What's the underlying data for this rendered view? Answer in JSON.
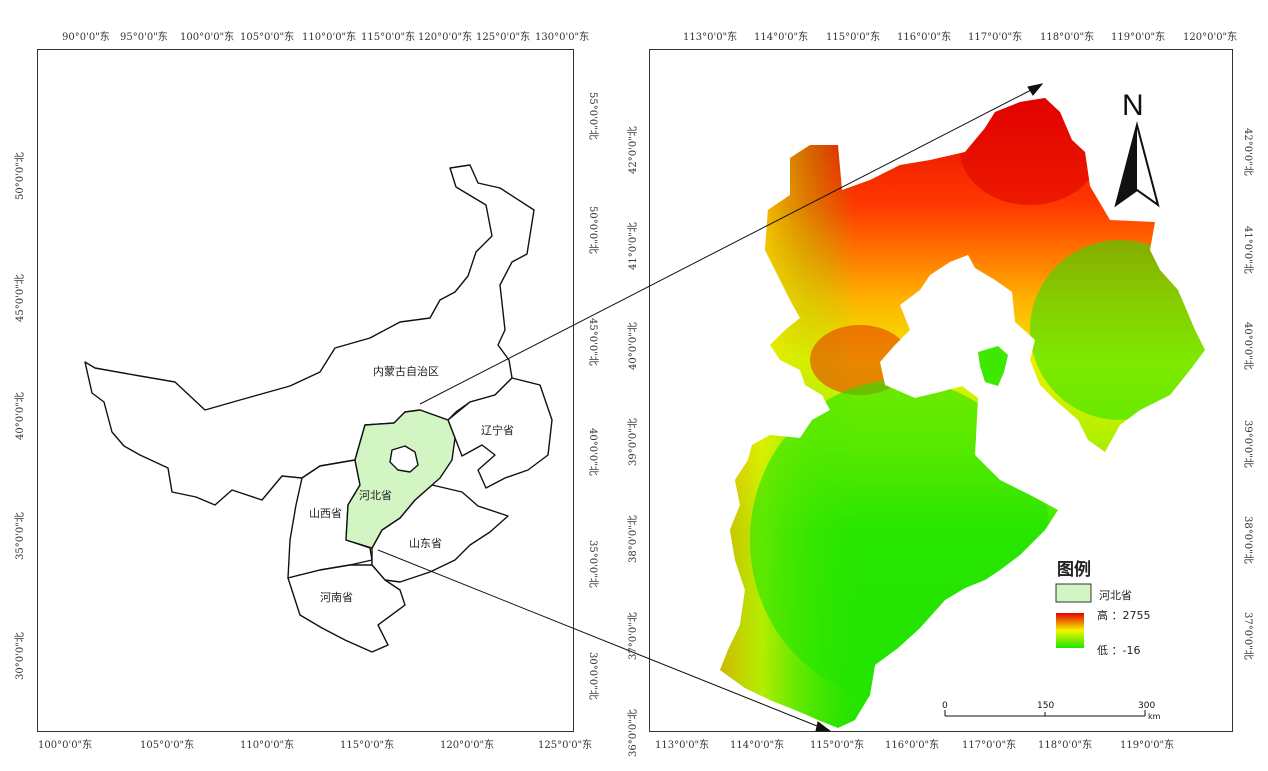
{
  "left_map": {
    "top_ticks": [
      "90°0'0\"东",
      "95°0'0\"东",
      "100°0'0\"东",
      "105°0'0\"东",
      "110°0'0\"东",
      "115°0'0\"东",
      "120°0'0\"东",
      "125°0'0\"东",
      "130°0'0\"东"
    ],
    "bottom_ticks": [
      "100°0'0\"东",
      "105°0'0\"东",
      "110°0'0\"东",
      "115°0'0\"东",
      "120°0'0\"东",
      "125°0'0\"东"
    ],
    "left_ticks": [
      "50°0'0\"北",
      "45°0'0\"北",
      "40°0'0\"北",
      "35°0'0\"北",
      "30°0'0\"北"
    ],
    "right_ticks": [
      "55°0'0\"北",
      "50°0'0\"北",
      "45°0'0\"北",
      "40°0'0\"北",
      "35°0'0\"北",
      "30°0'0\"北"
    ],
    "labels": {
      "neimenggu": "内蒙古自治区",
      "liaoning": "辽宁省",
      "hebei": "河北省",
      "shanxi": "山西省",
      "shandong": "山东省",
      "henan": "河南省"
    },
    "highlight_color": "#d3f5c4"
  },
  "right_map": {
    "top_ticks": [
      "113°0'0\"东",
      "114°0'0\"东",
      "115°0'0\"东",
      "116°0'0\"东",
      "117°0'0\"东",
      "118°0'0\"东",
      "119°0'0\"东",
      "120°0'0\"东"
    ],
    "bottom_ticks": [
      "113°0'0\"东",
      "114°0'0\"东",
      "115°0'0\"东",
      "116°0'0\"东",
      "117°0'0\"东",
      "118°0'0\"东",
      "119°0'0\"东"
    ],
    "left_ticks": [
      "42°0'0\"北",
      "41°0'0\"北",
      "40°0'0\"北",
      "39°0'0\"北",
      "38°0'0\"北",
      "37°0'0\"北",
      "36°0'0\"北"
    ],
    "right_ticks": [
      "42°0'0\"北",
      "41°0'0\"北",
      "40°0'0\"北",
      "39°0'0\"北",
      "38°0'0\"北",
      "37°0'0\"北"
    ],
    "north_label": "N",
    "legend": {
      "title": "图例",
      "hebei_label": "河北省",
      "high_label": "高 ：2755",
      "low_label": "低 ：-16"
    },
    "scale": {
      "labels": [
        "0",
        "150",
        "300"
      ],
      "unit": "km"
    },
    "colors": {
      "high": "#e60000",
      "mid": "#f5f500",
      "low": "#1ee600"
    }
  }
}
